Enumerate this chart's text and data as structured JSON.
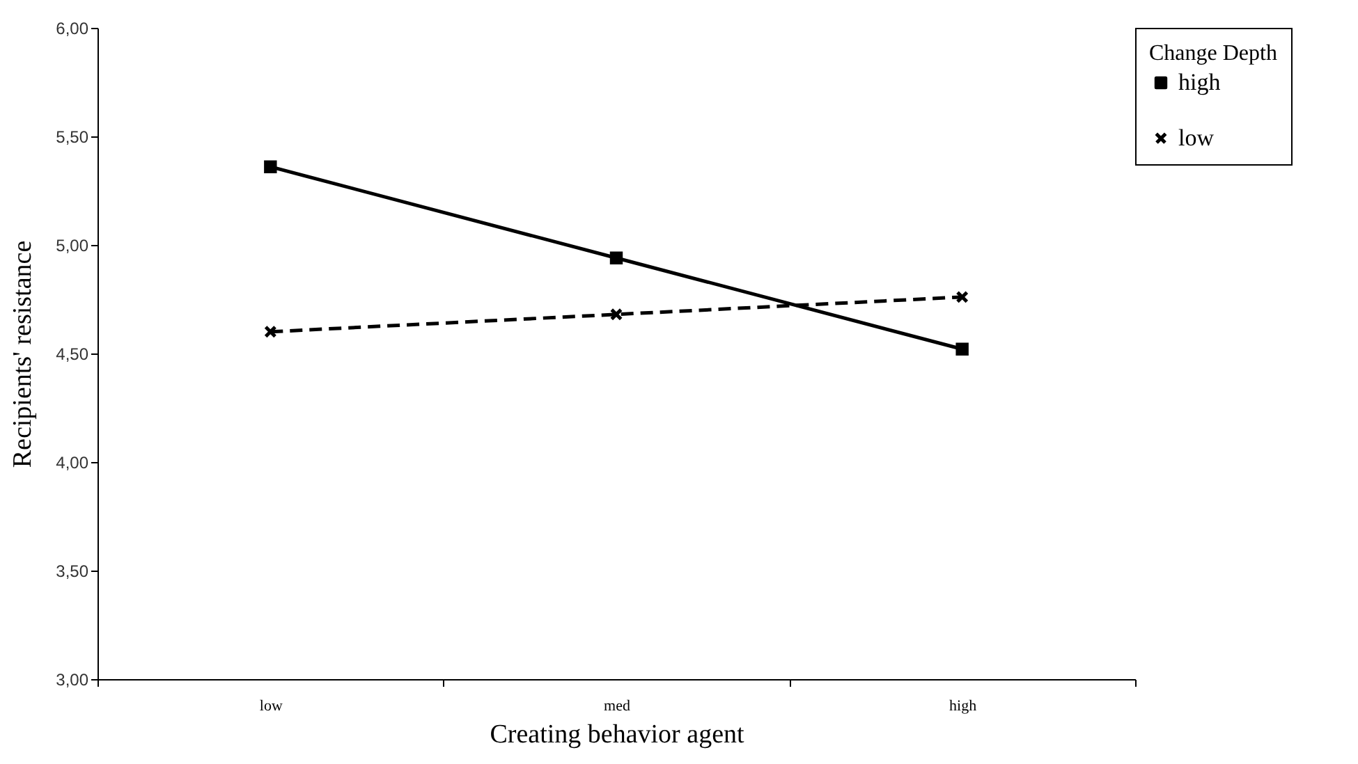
{
  "chart_data": {
    "type": "line",
    "xlabel": "Creating behavior agent",
    "ylabel": "Recipients' resistance",
    "legend_title": "Change Depth",
    "categories": [
      "low",
      "med",
      "high"
    ],
    "series": [
      {
        "name": "high",
        "color": "#000000",
        "marker": "square",
        "line_style": "solid",
        "values": [
          5.36,
          4.94,
          4.52
        ]
      },
      {
        "name": "low",
        "color": "#000000",
        "marker": "cross",
        "line_style": "dashed",
        "values": [
          4.6,
          4.68,
          4.76
        ]
      }
    ],
    "ylim": [
      3,
      6
    ],
    "yticks": [
      {
        "value": 3,
        "label": "3,00"
      },
      {
        "value": 3.5,
        "label": "3,50"
      },
      {
        "value": 4,
        "label": "4,00"
      },
      {
        "value": 4.5,
        "label": "4,50"
      },
      {
        "value": 5,
        "label": "5,00"
      },
      {
        "value": 5.5,
        "label": "5,50"
      },
      {
        "value": 6,
        "label": "6,00"
      }
    ],
    "grid": false,
    "legend": "right"
  }
}
